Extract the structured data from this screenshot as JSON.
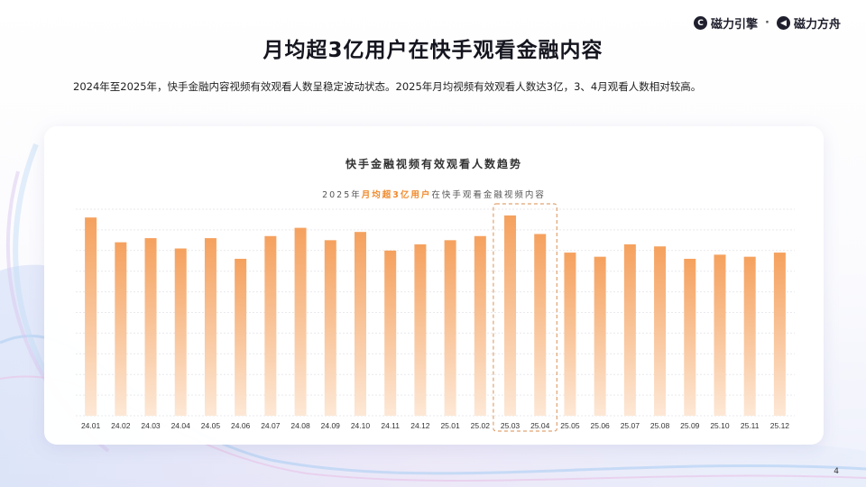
{
  "header": {
    "logo_brand1": "磁力引擎",
    "logo_separator": "·",
    "logo_brand2": "磁力方舟",
    "title": "月均超3亿用户在快手观看金融内容"
  },
  "intro_text": "2024年至2025年，快手金融内容视频有效观看人数呈稳定波动状态。2025年月均视频有效观看人数达3亿，3、4月观看人数相对较高。",
  "colors": {
    "bar_top": "#f5a15e",
    "bar_bottom": "#fde8d6",
    "highlight_border": "#e0a370",
    "subtitle_highlight": "#f08a2c"
  },
  "chart_data": {
    "type": "bar",
    "title": "快手金融视频有效观看人数趋势",
    "subtitle_prefix": "2025年",
    "subtitle_highlight": "月均超3亿用户",
    "subtitle_suffix": "在快手观看金融视频内容",
    "categories": [
      "24.01",
      "24.02",
      "24.03",
      "24.04",
      "24.05",
      "24.06",
      "24.07",
      "24.08",
      "24.09",
      "24.10",
      "24.11",
      "24.12",
      "25.01",
      "25.02",
      "25.03",
      "25.04",
      "25.05",
      "25.06",
      "25.07",
      "25.08",
      "25.09",
      "25.10",
      "25.11",
      "25.12"
    ],
    "values": [
      96,
      84,
      86,
      81,
      86,
      76,
      87,
      91,
      85,
      89,
      80,
      83,
      85,
      87,
      97,
      88,
      79,
      77,
      83,
      82,
      76,
      78,
      77,
      79
    ],
    "ylim": [
      0,
      100
    ],
    "y_axis_labels_shown": false,
    "grid": true,
    "highlighted_categories": [
      "25.03",
      "25.04"
    ]
  },
  "page_number": "4"
}
